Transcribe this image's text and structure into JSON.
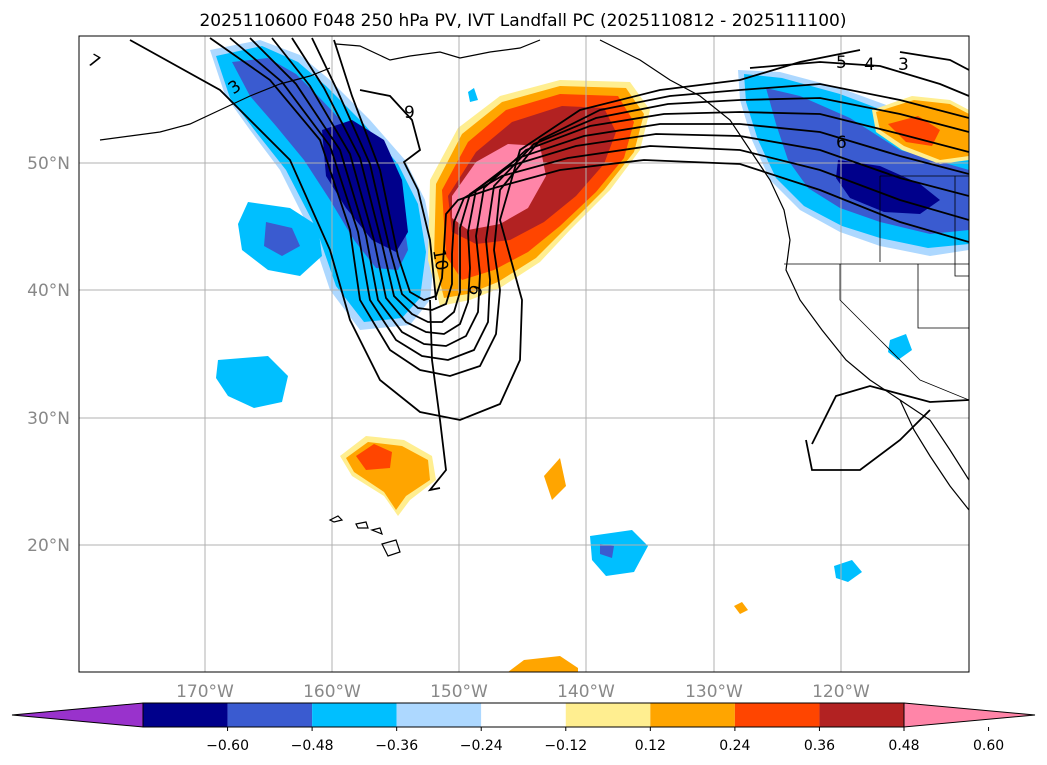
{
  "title": "2025110600 F048 250 hPa PV, IVT Landfall PC (2025110812 - 2025111100)",
  "map": {
    "lat_labels": [
      "50°N",
      "40°N",
      "30°N",
      "20°N"
    ],
    "lon_labels": [
      "170°W",
      "160°W",
      "150°W",
      "140°W",
      "130°W",
      "120°W"
    ],
    "pv_contour_labels": [
      "9",
      "10",
      "9",
      "3",
      "5",
      "4",
      "3",
      "6",
      "7"
    ],
    "colors": {
      "gridline": "#b0b0b0",
      "coastline": "#000000"
    }
  },
  "colorbar": {
    "colors": [
      "#9932cc",
      "#00008b",
      "#3a5bd0",
      "#00bfff",
      "#add8ff",
      "#ffffff",
      "#ffee90",
      "#ffa500",
      "#ff4500",
      "#b22222",
      "#ff85a8"
    ],
    "tick_labels": [
      "−0.60",
      "−0.48",
      "−0.36",
      "−0.24",
      "−0.12",
      "0.12",
      "0.24",
      "0.36",
      "0.48",
      "0.60"
    ]
  }
}
